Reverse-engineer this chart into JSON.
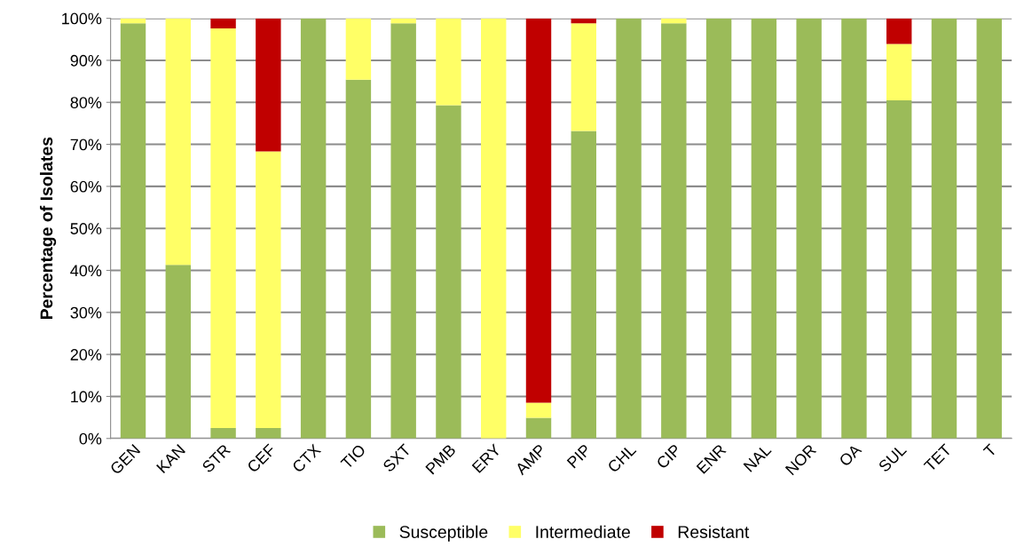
{
  "chart_data": {
    "type": "bar",
    "stacked": true,
    "ylabel": "Percentage of Isolates",
    "categories": [
      "GEN",
      "KAN",
      "STR",
      "CEF",
      "CTX",
      "TIO",
      "SXT",
      "PMB",
      "ERY",
      "AMP",
      "PIP",
      "CHL",
      "CIP",
      "ENR",
      "NAL",
      "NOR",
      "OA",
      "SUL",
      "TET",
      "T"
    ],
    "series": [
      {
        "name": "Susceptible",
        "color": "#9bbb59",
        "values": [
          98.8,
          41.3,
          2.5,
          2.5,
          100,
          85.4,
          98.8,
          79.3,
          0,
          4.9,
          73.2,
          100,
          98.8,
          100,
          100,
          100,
          100,
          80.5,
          100,
          100
        ]
      },
      {
        "name": "Intermediate",
        "color": "#ffff66",
        "values": [
          1.2,
          58.7,
          95.1,
          65.8,
          0,
          14.6,
          1.2,
          20.7,
          100,
          3.6,
          25.6,
          0,
          1.2,
          0,
          0,
          0,
          0,
          13.4,
          0,
          0
        ]
      },
      {
        "name": "Resistant",
        "color": "#c00000",
        "values": [
          0,
          0,
          2.4,
          31.7,
          0,
          0,
          0,
          0,
          0,
          91.5,
          1.2,
          0,
          0,
          0,
          0,
          0,
          0,
          6.1,
          0,
          0
        ]
      }
    ],
    "ylim": [
      0,
      100
    ],
    "yticks": [
      {
        "value": 0,
        "label": "0%"
      },
      {
        "value": 10,
        "label": "10%"
      },
      {
        "value": 20,
        "label": "20%"
      },
      {
        "value": 30,
        "label": "30%"
      },
      {
        "value": 40,
        "label": "40%"
      },
      {
        "value": 50,
        "label": "50%"
      },
      {
        "value": 60,
        "label": "60%"
      },
      {
        "value": 70,
        "label": "70%"
      },
      {
        "value": 80,
        "label": "80%"
      },
      {
        "value": 90,
        "label": "90%"
      },
      {
        "value": 100,
        "label": "100%"
      }
    ],
    "grid": "y",
    "legend": "bottom"
  }
}
